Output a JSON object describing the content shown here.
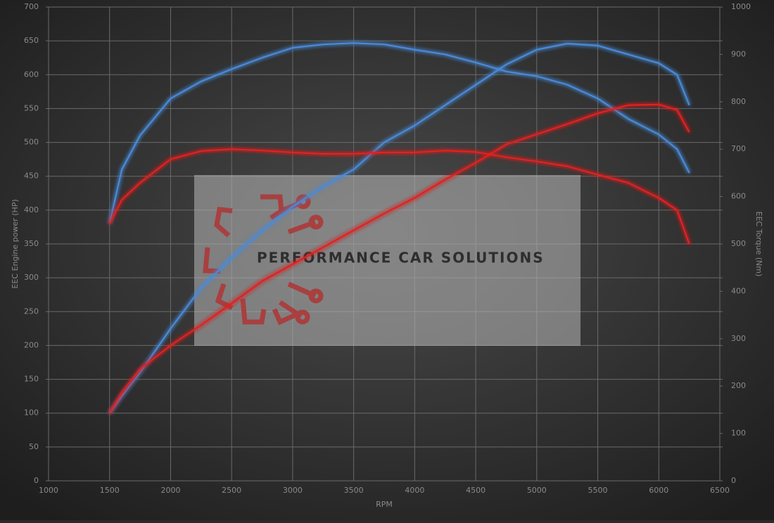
{
  "chart_data": {
    "type": "line",
    "x_label": "RPM",
    "y_label": "EEC Engine power (HP)",
    "y2_label": "EEC Torque (Nm)",
    "watermark": "PERFORMANCE CAR SOLUTIONS",
    "x": [
      1500,
      1600,
      1750,
      2000,
      2250,
      2500,
      2750,
      3000,
      3250,
      3500,
      3750,
      4000,
      4250,
      4500,
      4750,
      5000,
      5250,
      5500,
      5750,
      6000,
      6150,
      6250
    ],
    "series": [
      {
        "color": "#4a8ad8",
        "values": [
          100,
          125,
          160,
          225,
          285,
          330,
          370,
          405,
          435,
          460,
          500,
          525,
          555,
          585,
          615,
          637,
          646,
          643,
          630,
          617,
          600,
          555
        ]
      },
      {
        "color": "#4a8ad8",
        "axis": "y2",
        "values": [
          543,
          657,
          729,
          807,
          843,
          869,
          893,
          914,
          921,
          924,
          921,
          910,
          900,
          883,
          864,
          854,
          836,
          807,
          764,
          731,
          700,
          650
        ]
      },
      {
        "color": "#e02424",
        "values": [
          100,
          130,
          165,
          200,
          230,
          262,
          295,
          320,
          345,
          370,
          395,
          418,
          445,
          470,
          497,
          512,
          527,
          543,
          555,
          556,
          548,
          515
        ]
      },
      {
        "color": "#e02424",
        "axis": "y2",
        "values": [
          543,
          593,
          629,
          679,
          696,
          700,
          697,
          693,
          690,
          690,
          693,
          693,
          697,
          694,
          683,
          674,
          664,
          646,
          629,
          597,
          571,
          500
        ]
      }
    ],
    "xlim": [
      1000,
      6500
    ],
    "xticks": [
      1000,
      1500,
      2000,
      2500,
      3000,
      3500,
      4000,
      4500,
      5000,
      5500,
      6000,
      6500
    ],
    "ylim": [
      0,
      700
    ],
    "yticks": [
      0,
      50,
      100,
      150,
      200,
      250,
      300,
      350,
      400,
      450,
      500,
      550,
      600,
      650,
      700
    ],
    "y2lim": [
      0,
      1000
    ],
    "y2ticks": [
      0,
      100,
      200,
      300,
      400,
      500,
      600,
      700,
      800,
      900,
      1000
    ],
    "grid": true
  }
}
